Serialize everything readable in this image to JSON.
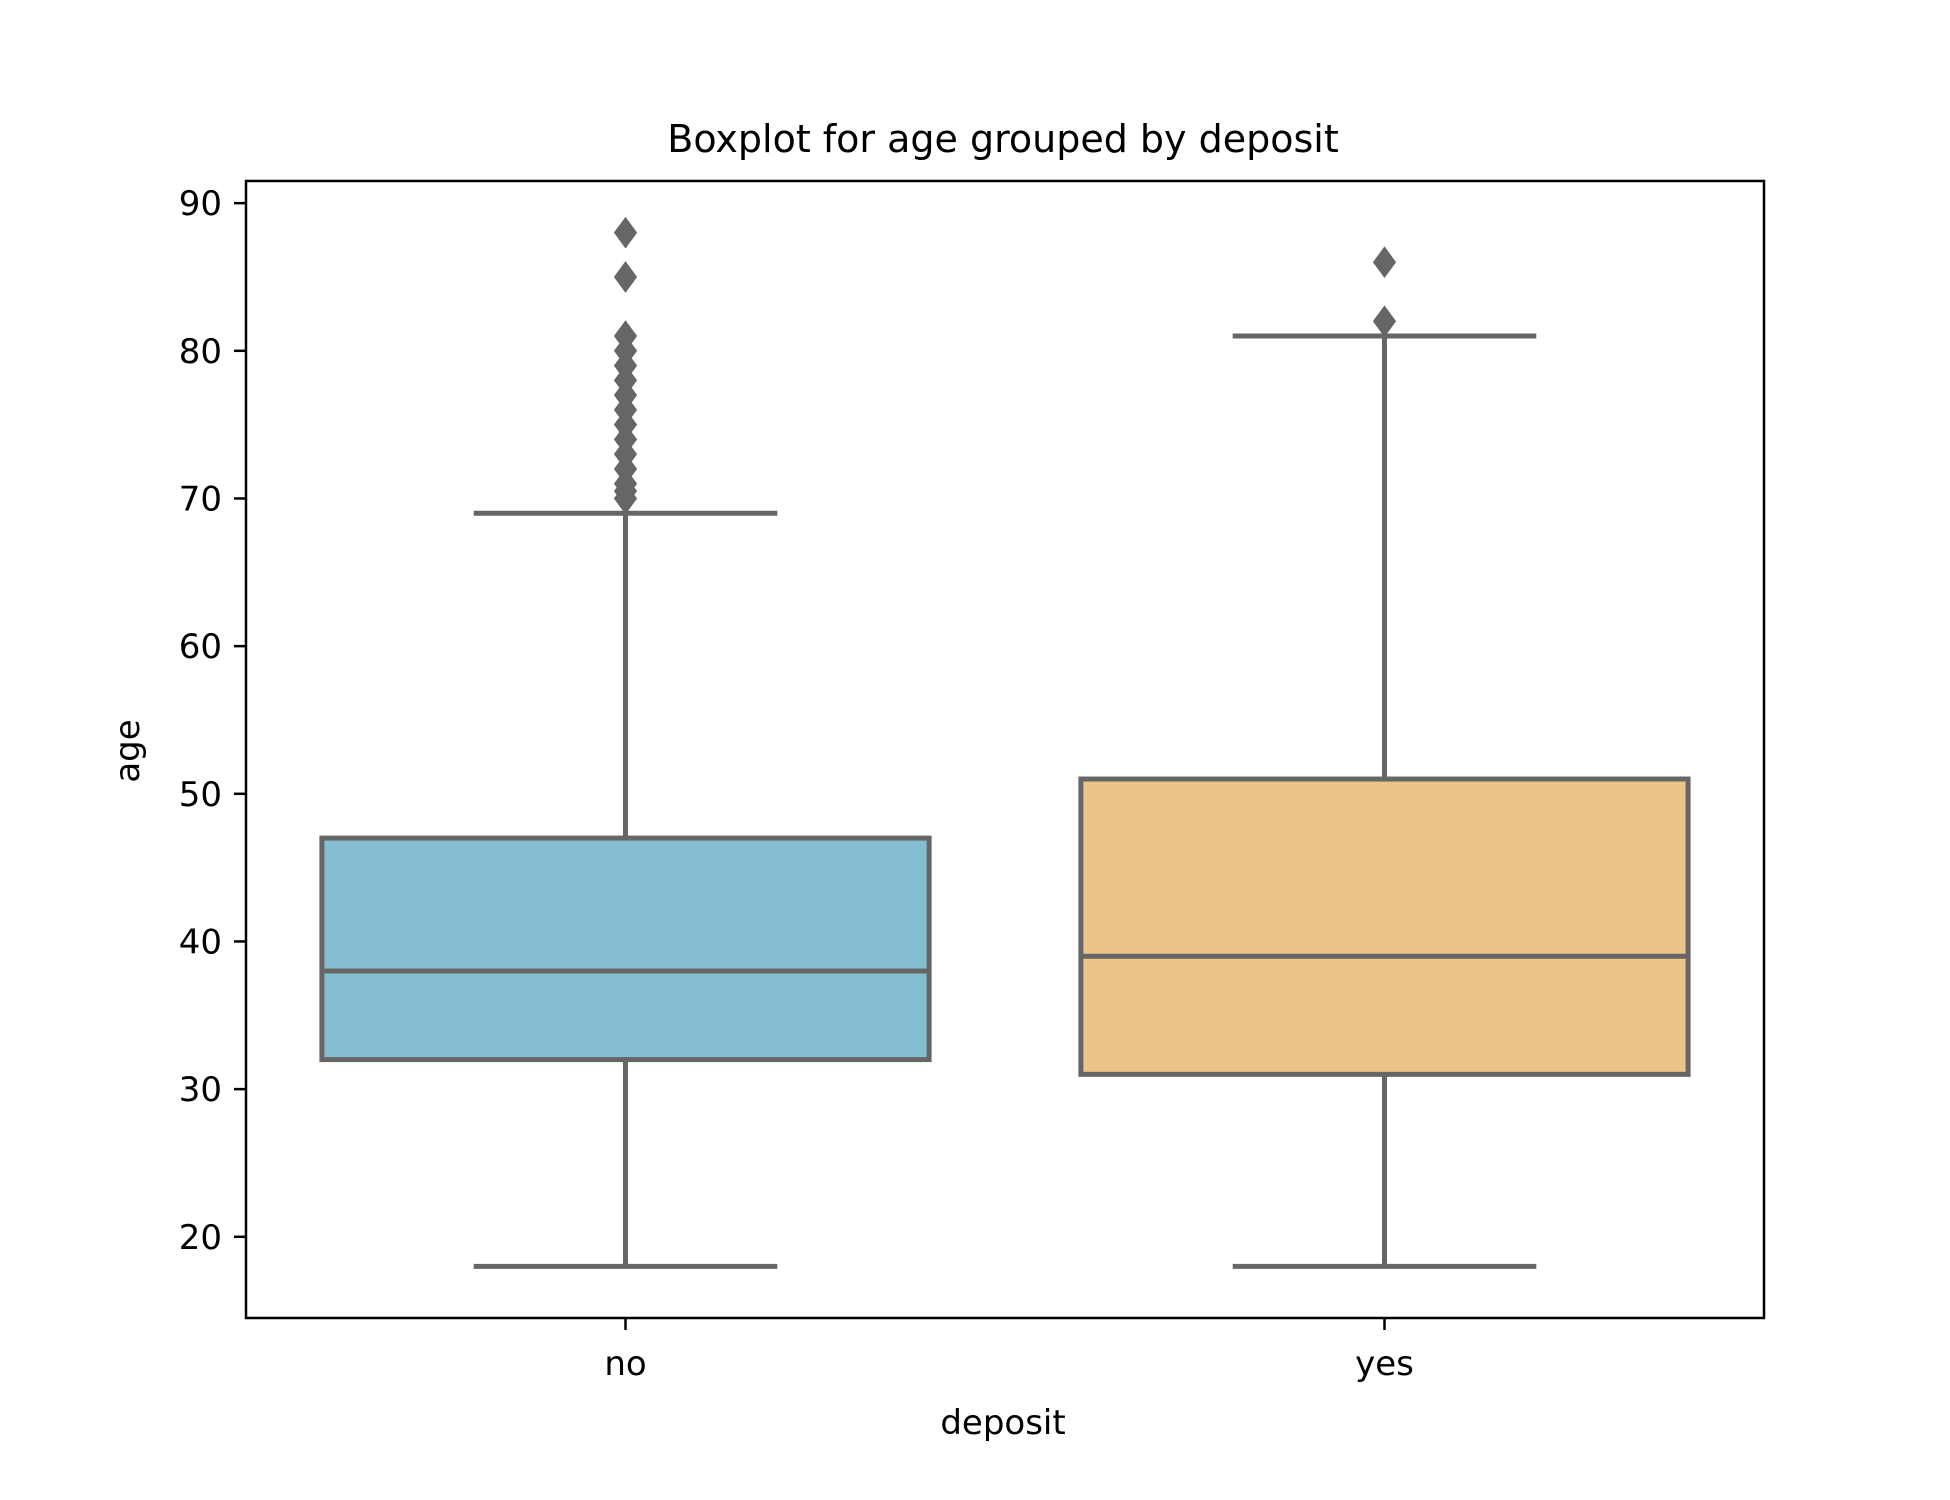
{
  "chart_data": {
    "type": "boxplot",
    "title": "Boxplot for age grouped by deposit",
    "xlabel": "deposit",
    "ylabel": "age",
    "categories": [
      "no",
      "yes"
    ],
    "ylim": [
      14.5,
      91.5
    ],
    "yticks": [
      20,
      30,
      40,
      50,
      60,
      70,
      80,
      90
    ],
    "grid": false,
    "legend": "none",
    "line_color": "#666666",
    "box_colors": [
      "#85BED2",
      "#ECC489"
    ],
    "boxes": [
      {
        "category": "no",
        "whisker_low": 18,
        "q1": 32,
        "median": 38,
        "q3": 47,
        "whisker_high": 69,
        "outliers": [
          70,
          70.5,
          71,
          72,
          73,
          74,
          75,
          76,
          77,
          78,
          79,
          80,
          81,
          85,
          88
        ]
      },
      {
        "category": "yes",
        "whisker_low": 18,
        "q1": 31,
        "median": 39,
        "q3": 51,
        "whisker_high": 81,
        "outliers": [
          82,
          86
        ]
      }
    ]
  }
}
